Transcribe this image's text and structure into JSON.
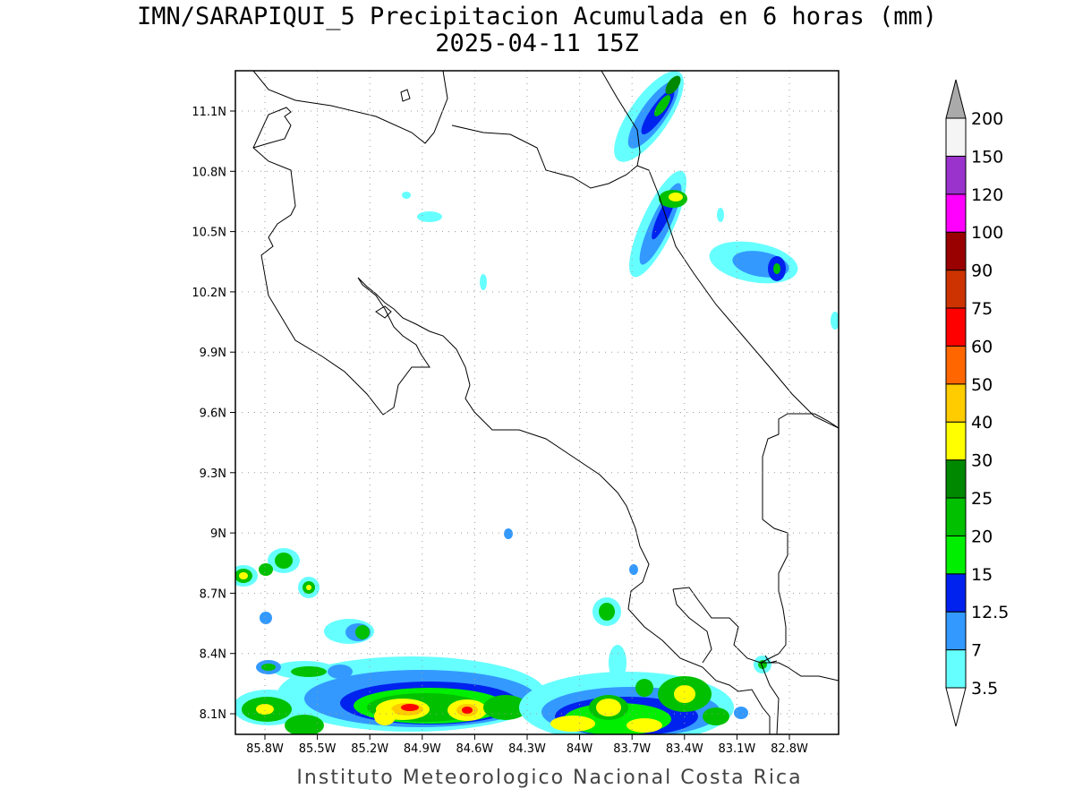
{
  "header": {
    "title": "IMN/SARAPIQUI_5 Precipitacion Acumulada en 6 horas (mm)",
    "subtitle": "2025-04-11 15Z"
  },
  "footer": {
    "credit": "Instituto Meteorologico Nacional Costa Rica"
  },
  "map": {
    "lat_labels": [
      "11.1N",
      "10.8N",
      "10.5N",
      "10.2N",
      "9.9N",
      "9.6N",
      "9.3N",
      "9N",
      "8.7N",
      "8.4N",
      "8.1N"
    ],
    "lon_labels": [
      "85.8W",
      "85.5W",
      "85.2W",
      "84.9W",
      "84.6W",
      "84.3W",
      "84W",
      "83.7W",
      "83.4W",
      "83.1W",
      "82.8W"
    ],
    "lat_values": [
      11.1,
      10.8,
      10.5,
      10.2,
      9.9,
      9.6,
      9.3,
      9.0,
      8.7,
      8.4,
      8.1
    ],
    "lon_values": [
      -85.8,
      -85.5,
      -85.2,
      -84.9,
      -84.6,
      -84.3,
      -84.0,
      -83.7,
      -83.4,
      -83.1,
      -82.8
    ],
    "grid": true
  },
  "colorbar": {
    "levels": [
      "3.5",
      "7",
      "12.5",
      "15",
      "20",
      "25",
      "30",
      "40",
      "50",
      "60",
      "75",
      "90",
      "100",
      "120",
      "150",
      "200"
    ],
    "colors": [
      "#ffffff",
      "#66ffff",
      "#3399ff",
      "#0022ee",
      "#00ee00",
      "#00c000",
      "#008800",
      "#ffff00",
      "#ffcc00",
      "#ff6600",
      "#ff0000",
      "#cc3300",
      "#990000",
      "#ff00ff",
      "#9933cc",
      "#f5f5f5",
      "#aaaaaa"
    ]
  }
}
